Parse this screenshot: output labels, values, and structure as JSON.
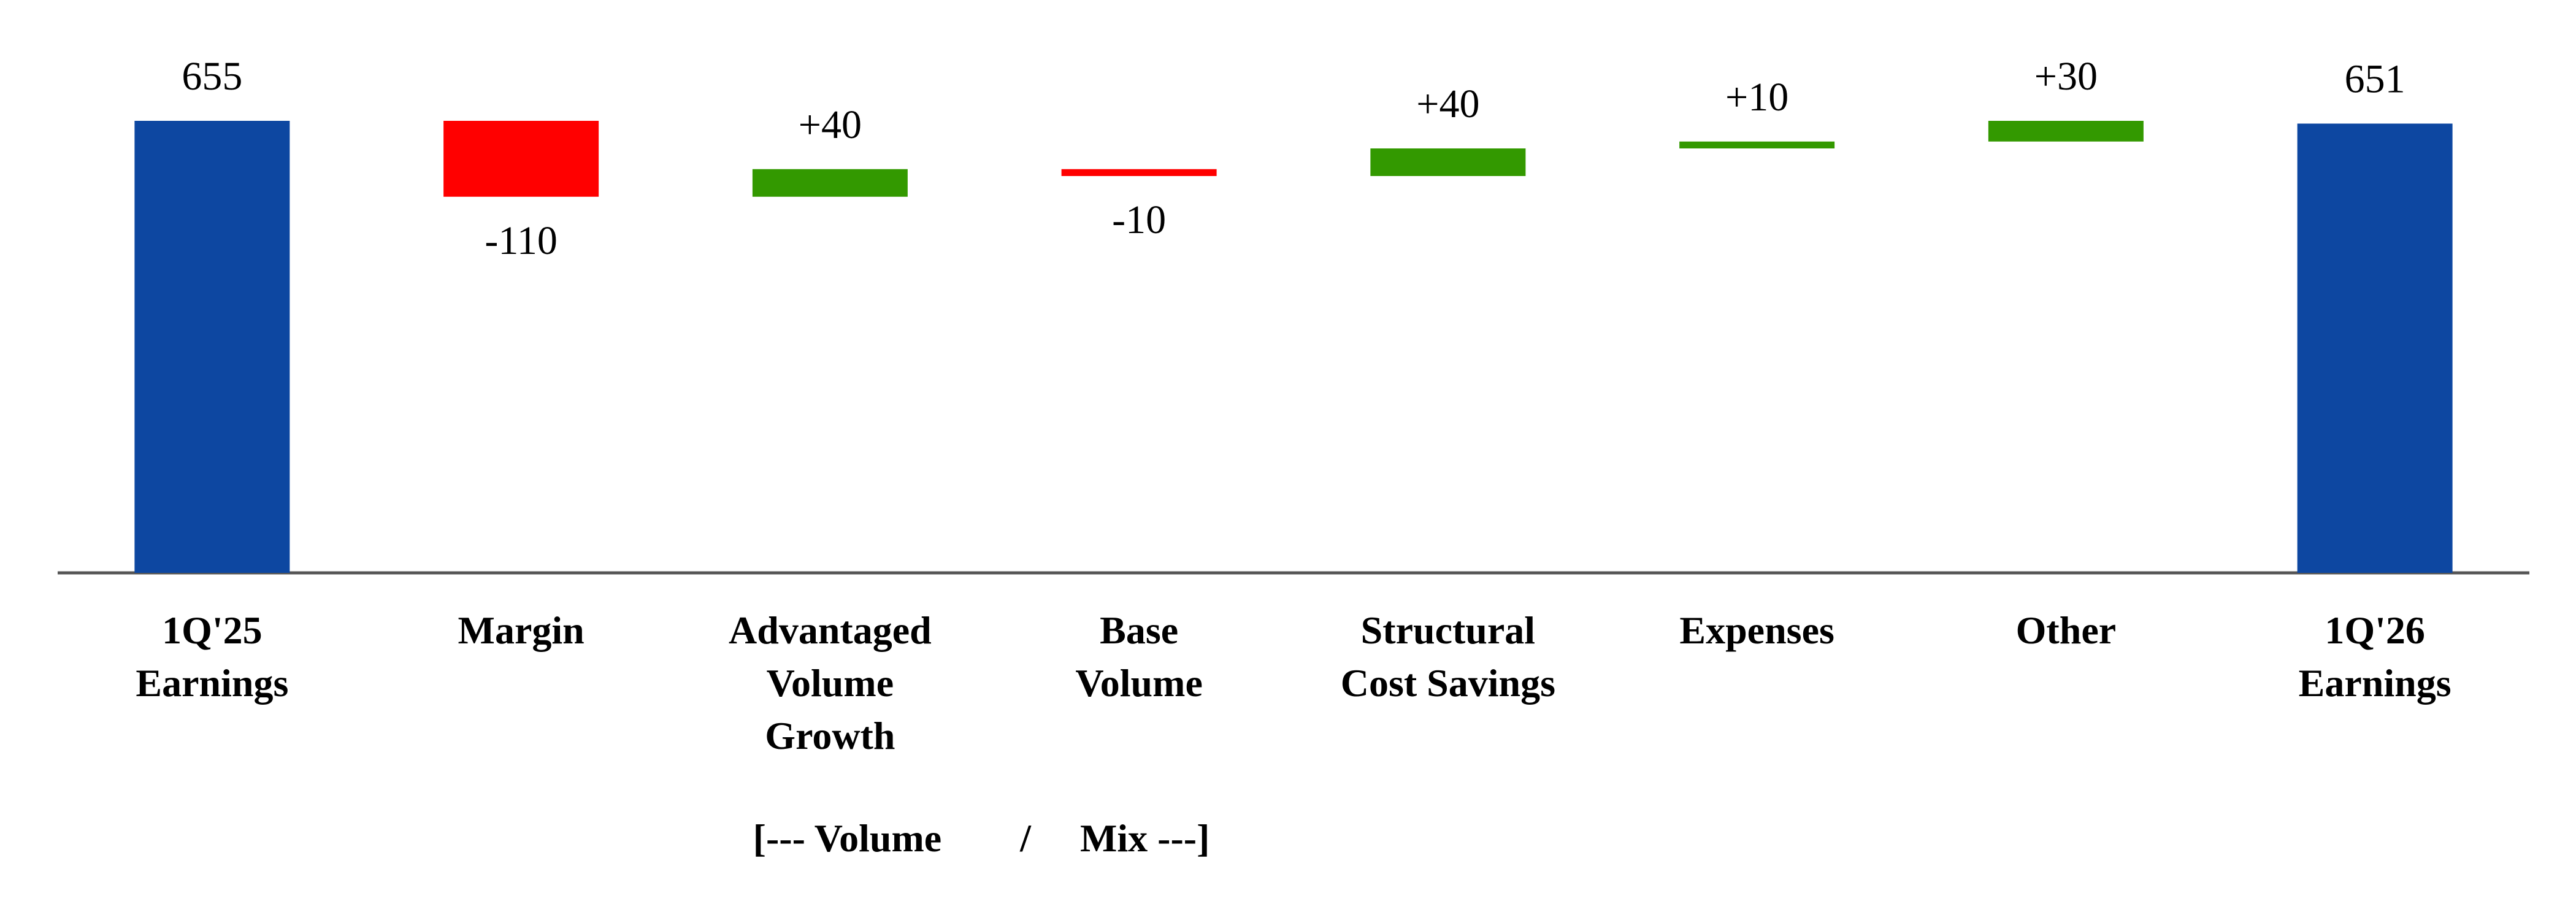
{
  "chart_data": {
    "type": "waterfall",
    "categories": [
      "1Q'25\nEarnings",
      "Margin",
      "Advantaged\nVolume\nGrowth",
      "Base\nVolume",
      "Structural\nCost Savings",
      "Expenses",
      "Other",
      "1Q'26\nEarnings"
    ],
    "values": [
      655,
      -110,
      40,
      -10,
      40,
      10,
      30,
      651
    ],
    "value_labels": [
      "655",
      "-110",
      "+40",
      "-10",
      "+40",
      "+10",
      "+30",
      "651"
    ],
    "measure": [
      "absolute",
      "relative",
      "relative",
      "relative",
      "relative",
      "relative",
      "relative",
      "total"
    ],
    "colors": [
      "#0d47a1",
      "#ff0000",
      "#339900",
      "#ff0000",
      "#339900",
      "#339900",
      "#339900",
      "#0d47a1"
    ],
    "annotation": "[--- Volume        /     Mix ---]"
  }
}
